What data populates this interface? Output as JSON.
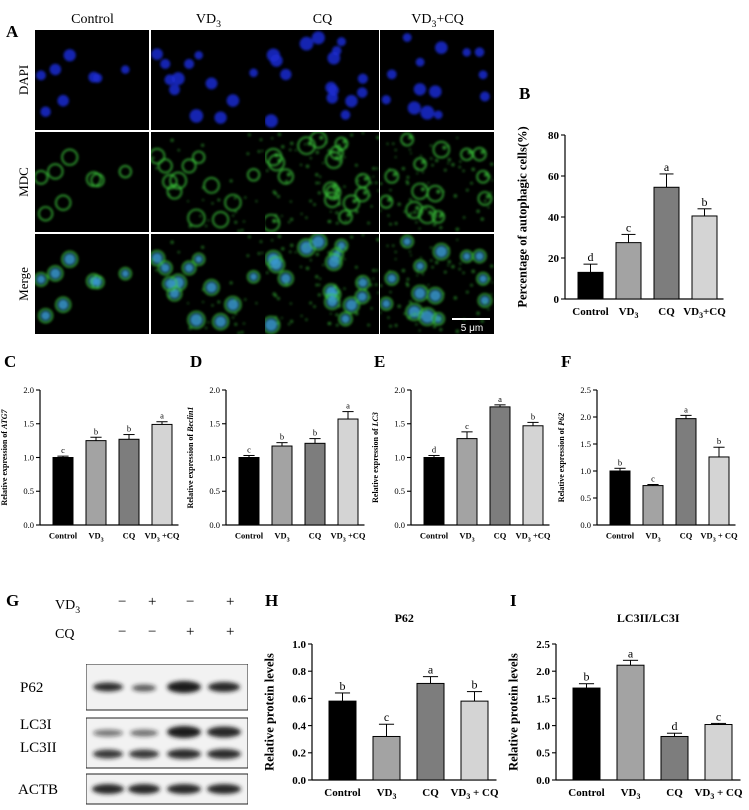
{
  "panels": {
    "A": "A",
    "B": "B",
    "C": "C",
    "D": "D",
    "E": "E",
    "F": "F",
    "G": "G",
    "H": "H",
    "I": "I"
  },
  "panel_a": {
    "columns": [
      "Control",
      "VD3",
      "CQ",
      "VD3+CQ"
    ],
    "rows": [
      "DAPI",
      "MDC",
      "Merge"
    ],
    "scalebar": "5 μm",
    "colors": {
      "dapi": "#1a2bd0",
      "mdc": "#3cc83c",
      "merge_nucleus": "#3a9ad0"
    }
  },
  "panel_g": {
    "treatments": [
      {
        "name": "VD3",
        "values": [
          "−",
          "+",
          "−",
          "+"
        ]
      },
      {
        "name": "CQ",
        "values": [
          "−",
          "−",
          "+",
          "+"
        ]
      }
    ],
    "bands": [
      "P62",
      "LC3I",
      "LC3II",
      "ACTB"
    ]
  },
  "chart_data": [
    {
      "id": "B",
      "type": "bar",
      "categories": [
        "Control",
        "VD3",
        "CQ",
        "VD3+CQ"
      ],
      "values": [
        13,
        27.5,
        54.5,
        40.5
      ],
      "errors": [
        4,
        4,
        6.5,
        3.5
      ],
      "letters": [
        "d",
        "c",
        "a",
        "b"
      ],
      "ylabel": "Percentage of autophagic cells(%)",
      "ylim": [
        0,
        80
      ],
      "yticks": [
        "0",
        "20",
        "40",
        "60",
        "80"
      ],
      "colors": [
        "#000000",
        "#a3a3a3",
        "#7d7d7d",
        "#d4d4d4"
      ]
    },
    {
      "id": "C",
      "type": "bar",
      "categories": [
        "Control",
        "VD3",
        "CQ",
        "VD3 +CQ"
      ],
      "values": [
        1.0,
        1.25,
        1.27,
        1.49
      ],
      "errors": [
        0.02,
        0.05,
        0.07,
        0.04
      ],
      "letters": [
        "c",
        "b",
        "b",
        "a"
      ],
      "ylabel": "Relative expression of ATG7",
      "ylim": [
        0,
        2.0
      ],
      "yticks": [
        "0.0",
        "0.5",
        "1.0",
        "1.5",
        "2.0"
      ],
      "colors": [
        "#000000",
        "#a3a3a3",
        "#7d7d7d",
        "#d4d4d4"
      ]
    },
    {
      "id": "D",
      "type": "bar",
      "categories": [
        "Control",
        "VD3",
        "CQ",
        "VD3 +CQ"
      ],
      "values": [
        1.0,
        1.17,
        1.21,
        1.57
      ],
      "errors": [
        0.03,
        0.05,
        0.07,
        0.11
      ],
      "letters": [
        "c",
        "b",
        "b",
        "a"
      ],
      "ylabel": "Relative expression of Beclin1",
      "ylim": [
        0,
        2.0
      ],
      "yticks": [
        "0.0",
        "0.5",
        "1.0",
        "1.5",
        "2.0"
      ],
      "colors": [
        "#000000",
        "#a3a3a3",
        "#7d7d7d",
        "#d4d4d4"
      ]
    },
    {
      "id": "E",
      "type": "bar",
      "categories": [
        "Control",
        "VD3",
        "CQ",
        "VD3 +CQ"
      ],
      "values": [
        1.0,
        1.28,
        1.75,
        1.47
      ],
      "errors": [
        0.03,
        0.1,
        0.03,
        0.05
      ],
      "letters": [
        "d",
        "c",
        "a",
        "b"
      ],
      "ylabel": "Relative expression of LC3",
      "ylim": [
        0,
        2.0
      ],
      "yticks": [
        "0.0",
        "0.5",
        "1.0",
        "1.5",
        "2.0"
      ],
      "colors": [
        "#000000",
        "#a3a3a3",
        "#7d7d7d",
        "#d4d4d4"
      ]
    },
    {
      "id": "F",
      "type": "bar",
      "categories": [
        "Control",
        "VD3",
        "CQ",
        "VD3 + CQ"
      ],
      "values": [
        1.0,
        0.73,
        1.97,
        1.26
      ],
      "errors": [
        0.05,
        0.02,
        0.06,
        0.18
      ],
      "letters": [
        "b",
        "c",
        "a",
        "b"
      ],
      "ylabel": "Relative expression of P62",
      "ylim": [
        0,
        2.5
      ],
      "yticks": [
        "0.0",
        "0.5",
        "1.0",
        "1.5",
        "2.0",
        "2.5"
      ],
      "colors": [
        "#000000",
        "#a3a3a3",
        "#7d7d7d",
        "#d4d4d4"
      ]
    },
    {
      "id": "H",
      "type": "bar",
      "title": "P62",
      "categories": [
        "Control",
        "VD3",
        "CQ",
        "VD3 + CQ"
      ],
      "values": [
        0.58,
        0.32,
        0.71,
        0.58
      ],
      "errors": [
        0.06,
        0.09,
        0.05,
        0.07
      ],
      "letters": [
        "b",
        "c",
        "a",
        "b"
      ],
      "ylabel": "Relative protein levels",
      "ylim": [
        0,
        1.0
      ],
      "yticks": [
        "0.0",
        "0.2",
        "0.4",
        "0.6",
        "0.8",
        "1.0"
      ],
      "colors": [
        "#000000",
        "#a3a3a3",
        "#7d7d7d",
        "#d4d4d4"
      ]
    },
    {
      "id": "I",
      "type": "bar",
      "title": "LC3II/LC3I",
      "categories": [
        "Control",
        "VD3",
        "CQ",
        "VD3 + CQ"
      ],
      "values": [
        1.69,
        2.11,
        0.8,
        1.02
      ],
      "errors": [
        0.08,
        0.09,
        0.06,
        0.02
      ],
      "letters": [
        "b",
        "a",
        "d",
        "c"
      ],
      "ylabel": "Relative protein levels",
      "ylim": [
        0,
        2.5
      ],
      "yticks": [
        "0.0",
        "0.5",
        "1.0",
        "1.5",
        "2.0",
        "2.5"
      ],
      "colors": [
        "#000000",
        "#a3a3a3",
        "#7d7d7d",
        "#d4d4d4"
      ]
    }
  ]
}
